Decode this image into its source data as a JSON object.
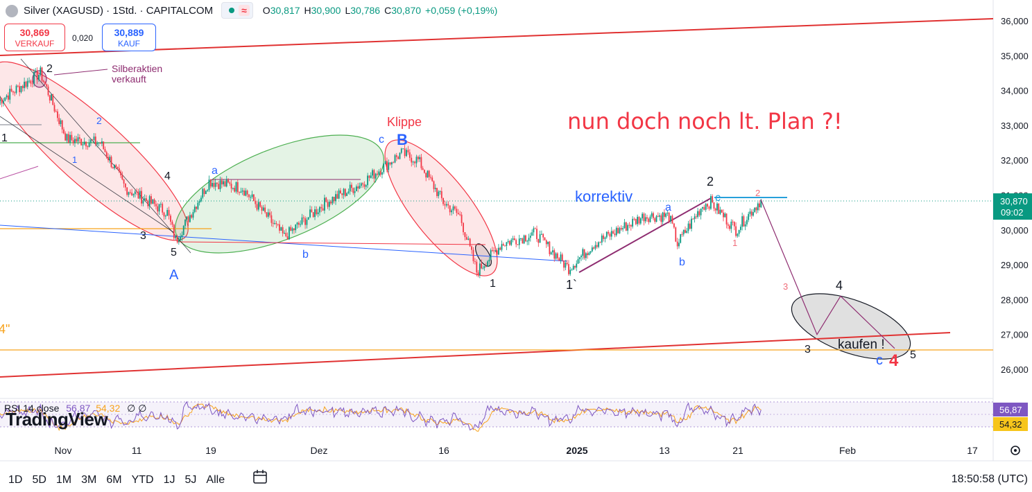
{
  "header": {
    "title": "Silver (XAGUSD) · 1Std. · CAPITALCOM",
    "wave_icon": "wave-icon",
    "ohlc": [
      {
        "k": "O",
        "v": "30,817"
      },
      {
        "k": "H",
        "v": "30,900"
      },
      {
        "k": "L",
        "v": "30,786"
      },
      {
        "k": "C",
        "v": "30,870"
      },
      {
        "k": "",
        "v": "+0,059 (+0,19%)"
      }
    ]
  },
  "trade": {
    "sell_price": "30,869",
    "sell_label": "VERKAUF",
    "spread": "0,020",
    "buy_price": "30,889",
    "buy_label": "KAUF"
  },
  "price_axis": {
    "ticks": [
      "36,000",
      "35,000",
      "34,000",
      "33,000",
      "32,000",
      "31,000",
      "30,000",
      "29,000",
      "28,000",
      "27,000",
      "26,000"
    ],
    "current_price": "30,870",
    "countdown": "09:02"
  },
  "time_axis": {
    "ticks": [
      {
        "label": "Nov",
        "bold": false
      },
      {
        "label": "11",
        "bold": false
      },
      {
        "label": "19",
        "bold": false
      },
      {
        "label": "Dez",
        "bold": false
      },
      {
        "label": "16",
        "bold": false
      },
      {
        "label": "2025",
        "bold": true
      },
      {
        "label": "13",
        "bold": false
      },
      {
        "label": "21",
        "bold": false
      },
      {
        "label": "Feb",
        "bold": false
      },
      {
        "label": "17",
        "bold": false
      }
    ]
  },
  "annotations": {
    "headline": "nun doch noch lt. Plan ?!",
    "klippe": "Klippe",
    "korrektiv": "korrektiv",
    "silber_line1": "Silberaktien",
    "silber_line2": "verkauft",
    "kaufen": "kaufen !",
    "left_edge": "4\"",
    "wave_labels": [
      "1",
      "2",
      "3",
      "4",
      "5",
      "A",
      "a",
      "b",
      "c",
      "B",
      "1",
      "1`",
      "a",
      "b",
      "2",
      "c",
      "2",
      "1",
      "3",
      "4",
      "3",
      "5",
      "c",
      "4",
      "1",
      "2"
    ]
  },
  "rsi": {
    "legend": "RSI 14 close",
    "value1": "56,87",
    "value2": "54,32",
    "extra": "∅ ∅",
    "badge1": "56,87",
    "badge2": "54,32"
  },
  "logo": "TradingView",
  "bottom_bar": {
    "ranges": [
      "1D",
      "5D",
      "1M",
      "3M",
      "6M",
      "YTD",
      "1J",
      "5J",
      "Alle"
    ],
    "calendar_icon": "calendar-range-icon",
    "clock": "18:50:58 (UTC)"
  },
  "colors": {
    "up": "#089981",
    "down": "#f23645",
    "blue": "#2962ff",
    "headline": "#f23645",
    "trend": "#e03131",
    "purple": "#8e2c70",
    "orange": "#f7a21b"
  },
  "chart_data": {
    "type": "candlestick",
    "symbol": "XAGUSD",
    "interval": "1h",
    "ylim": [
      25.5,
      36.2
    ],
    "path_points": [
      [
        "Okt 24",
        33.7
      ],
      [
        "Okt 29",
        34.5
      ],
      [
        "Nov 1",
        32.6
      ],
      [
        "Nov 5",
        32.5
      ],
      [
        "Nov 8",
        31.2
      ],
      [
        "Nov 13",
        30.5
      ],
      [
        "Nov 14",
        29.7
      ],
      [
        "Nov 18",
        31.4
      ],
      [
        "Nov 22",
        31.2
      ],
      [
        "Nov 27",
        29.8
      ],
      [
        "Dez 2",
        30.8
      ],
      [
        "Dez 6",
        31.3
      ],
      [
        "Dez 11",
        32.2
      ],
      [
        "Dez 13",
        32.0
      ],
      [
        "Dez 16",
        30.8
      ],
      [
        "Dez 18",
        30.4
      ],
      [
        "Dez 20",
        28.8
      ],
      [
        "Dez 23",
        29.6
      ],
      [
        "Dez 27",
        29.9
      ],
      [
        "Dez 31",
        28.9
      ],
      [
        "Jan 3",
        29.6
      ],
      [
        "Jan 9",
        30.4
      ],
      [
        "Jan 12",
        30.4
      ],
      [
        "Jan 13",
        29.6
      ],
      [
        "Jan 16",
        30.7
      ],
      [
        "Jan 17",
        30.8
      ],
      [
        "Jan 20",
        30.0
      ],
      [
        "Jan 23",
        30.87
      ]
    ],
    "projection": [
      [
        "Jan 23",
        30.87
      ],
      [
        "Jan 30",
        27.0
      ],
      [
        "Feb 2",
        28.1
      ],
      [
        "Feb 9",
        26.6
      ]
    ],
    "trendlines": [
      {
        "from": [
          "Okt 24",
          35.1
        ],
        "to": [
          "Feb 24",
          36.1
        ]
      },
      {
        "from": [
          "Okt 24",
          25.8
        ],
        "to": [
          "Feb 12",
          27.1
        ]
      }
    ],
    "rsi": {
      "last": 56.87,
      "signal": 54.32
    }
  }
}
